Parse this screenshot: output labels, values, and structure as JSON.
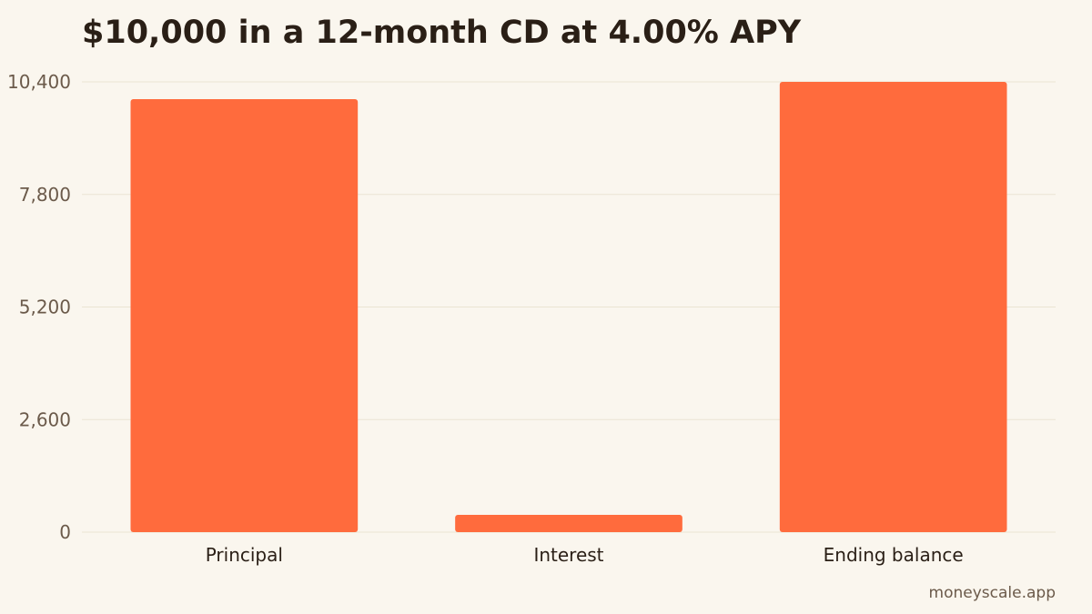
{
  "title": "$10,000 in a 12-month CD at 4.00% APY",
  "footer": "moneyscale.app",
  "colors": {
    "bar": "#ff6b3d",
    "background": "#faf6ee",
    "grid": "#ebe4d3"
  },
  "chart_data": {
    "type": "bar",
    "title": "$10,000 in a 12-month CD at 4.00% APY",
    "categories": [
      "Principal",
      "Interest",
      "Ending balance"
    ],
    "values": [
      10000,
      400,
      10400
    ],
    "ylim": [
      0,
      10400
    ],
    "yticks": [
      0,
      2600,
      5200,
      7800,
      10400
    ],
    "ytick_labels": [
      "0",
      "2,600",
      "5,200",
      "7,800",
      "10,400"
    ],
    "xlabel": "",
    "ylabel": "",
    "grid": true,
    "legend": false
  }
}
